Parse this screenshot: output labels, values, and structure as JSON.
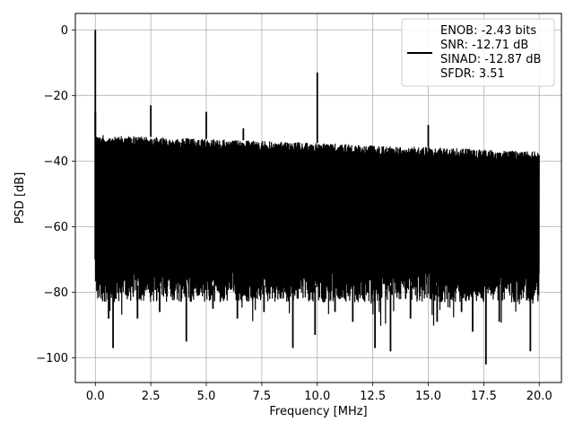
{
  "chart_data": {
    "type": "line",
    "title": "",
    "xlabel": "Frequency [MHz]",
    "ylabel": "PSD [dB]",
    "xlim": [
      -0.9,
      21.0
    ],
    "ylim": [
      -107.5,
      5
    ],
    "xticks": [
      0.0,
      2.5,
      5.0,
      7.5,
      10.0,
      12.5,
      15.0,
      17.5,
      20.0
    ],
    "xtick_labels": [
      "0.0",
      "2.5",
      "5.0",
      "7.5",
      "10.0",
      "12.5",
      "15.0",
      "17.5",
      "20.0"
    ],
    "yticks": [
      0,
      -20,
      -40,
      -60,
      -80,
      -100
    ],
    "ytick_labels": [
      "0",
      "−20",
      "−40",
      "−60",
      "−80",
      "−100"
    ],
    "grid": true,
    "legend_position": "top-right",
    "series": [
      {
        "name": "ENOB: -2.43 bits\nSNR: -12.71 dB\nSINAD: -12.87 dB\nSFDR: 3.51",
        "legend_lines": [
          "ENOB: -2.43 bits",
          "SNR: -12.71 dB",
          "SINAD: -12.87 dB",
          "SFDR: 3.51"
        ],
        "color": "#000000",
        "x_range": [
          0,
          20
        ],
        "noise_ceiling_start": -32,
        "noise_ceiling_end": -37,
        "noise_floor_typical": -78,
        "noise_floor_min": -102,
        "peaks": [
          {
            "x": 0.0,
            "y": 0
          },
          {
            "x": 2.5,
            "y": -23
          },
          {
            "x": 5.0,
            "y": -25
          },
          {
            "x": 6.67,
            "y": -30
          },
          {
            "x": 10.0,
            "y": -13
          },
          {
            "x": 15.0,
            "y": -29
          }
        ],
        "dips": [
          {
            "x": 0.6,
            "y": -88
          },
          {
            "x": 0.8,
            "y": -97
          },
          {
            "x": 1.9,
            "y": -88
          },
          {
            "x": 2.9,
            "y": -86
          },
          {
            "x": 4.1,
            "y": -95
          },
          {
            "x": 5.3,
            "y": -85
          },
          {
            "x": 6.4,
            "y": -88
          },
          {
            "x": 7.6,
            "y": -86
          },
          {
            "x": 8.9,
            "y": -97
          },
          {
            "x": 9.9,
            "y": -93
          },
          {
            "x": 10.8,
            "y": -86
          },
          {
            "x": 11.6,
            "y": -89
          },
          {
            "x": 12.6,
            "y": -97
          },
          {
            "x": 13.3,
            "y": -98
          },
          {
            "x": 14.2,
            "y": -88
          },
          {
            "x": 15.4,
            "y": -89
          },
          {
            "x": 16.5,
            "y": -86
          },
          {
            "x": 17.0,
            "y": -92
          },
          {
            "x": 17.6,
            "y": -102
          },
          {
            "x": 18.2,
            "y": -89
          },
          {
            "x": 19.6,
            "y": -98
          }
        ]
      }
    ]
  }
}
